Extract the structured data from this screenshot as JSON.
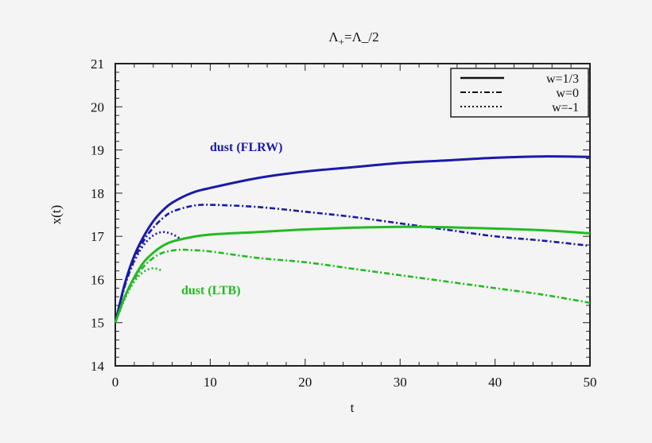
{
  "chart_data": {
    "type": "line",
    "title": "Λ+=Λ_/2",
    "xlabel": "t",
    "ylabel": "x(t)",
    "xlim": [
      0,
      50
    ],
    "ylim": [
      14,
      21
    ],
    "xticks": [
      0,
      10,
      20,
      30,
      40,
      50
    ],
    "yticks": [
      14,
      15,
      16,
      17,
      18,
      19,
      20,
      21
    ],
    "grid": false,
    "legend_position": "upper right",
    "legend": [
      {
        "label": "w=1/3",
        "style": "solid"
      },
      {
        "label": "w=0",
        "style": "dashdot"
      },
      {
        "label": "w=-1",
        "style": "dotted"
      }
    ],
    "annotations": [
      {
        "text": "dust (FLRW)",
        "color": "#1a1aa8",
        "x": 10,
        "y": 19.0
      },
      {
        "text": "dust (LTB)",
        "color": "#22bb22",
        "x": 7,
        "y": 15.9
      }
    ],
    "colors": {
      "FLRW": "#1a1aa8",
      "LTB": "#22bb22"
    },
    "series": [
      {
        "name": "FLRW w=1/3",
        "group": "FLRW",
        "style": "solid",
        "x": [
          0,
          1,
          2,
          3,
          4,
          5,
          6,
          8,
          10,
          15,
          20,
          25,
          30,
          35,
          40,
          45,
          50
        ],
        "y": [
          15,
          15.9,
          16.55,
          17.0,
          17.35,
          17.6,
          17.78,
          18.0,
          18.12,
          18.35,
          18.5,
          18.6,
          18.7,
          18.76,
          18.82,
          18.85,
          18.84
        ]
      },
      {
        "name": "FLRW w=0",
        "group": "FLRW",
        "style": "dashdot",
        "x": [
          0,
          1,
          2,
          3,
          4,
          5,
          6,
          8,
          10,
          15,
          20,
          25,
          30,
          35,
          40,
          45,
          50
        ],
        "y": [
          15,
          15.85,
          16.45,
          16.9,
          17.2,
          17.42,
          17.57,
          17.7,
          17.73,
          17.68,
          17.57,
          17.45,
          17.3,
          17.15,
          17.0,
          16.9,
          16.78
        ]
      },
      {
        "name": "FLRW w=-1",
        "group": "FLRW",
        "style": "dotted",
        "x": [
          0,
          1,
          2,
          3,
          4,
          5,
          6,
          7
        ],
        "y": [
          15,
          15.85,
          16.42,
          16.8,
          17.02,
          17.1,
          17.05,
          16.92
        ]
      },
      {
        "name": "LTB w=1/3",
        "group": "LTB",
        "style": "solid",
        "x": [
          0,
          1,
          2,
          3,
          4,
          5,
          6,
          8,
          10,
          15,
          20,
          25,
          30,
          35,
          40,
          45,
          50
        ],
        "y": [
          15,
          15.6,
          16.05,
          16.4,
          16.62,
          16.78,
          16.88,
          16.98,
          17.04,
          17.1,
          17.16,
          17.2,
          17.22,
          17.21,
          17.18,
          17.14,
          17.07
        ]
      },
      {
        "name": "LTB w=0",
        "group": "LTB",
        "style": "dashdot",
        "x": [
          0,
          1,
          2,
          3,
          4,
          5,
          6,
          7,
          8,
          10,
          15,
          20,
          25,
          30,
          35,
          40,
          45,
          50
        ],
        "y": [
          15,
          15.58,
          16.0,
          16.3,
          16.5,
          16.62,
          16.67,
          16.69,
          16.68,
          16.65,
          16.5,
          16.4,
          16.25,
          16.1,
          15.95,
          15.8,
          15.65,
          15.46
        ]
      },
      {
        "name": "LTB w=-1",
        "group": "LTB",
        "style": "dotted",
        "x": [
          0,
          1,
          2,
          3,
          4,
          5
        ],
        "y": [
          15,
          15.55,
          15.95,
          16.18,
          16.26,
          16.2
        ]
      }
    ]
  }
}
